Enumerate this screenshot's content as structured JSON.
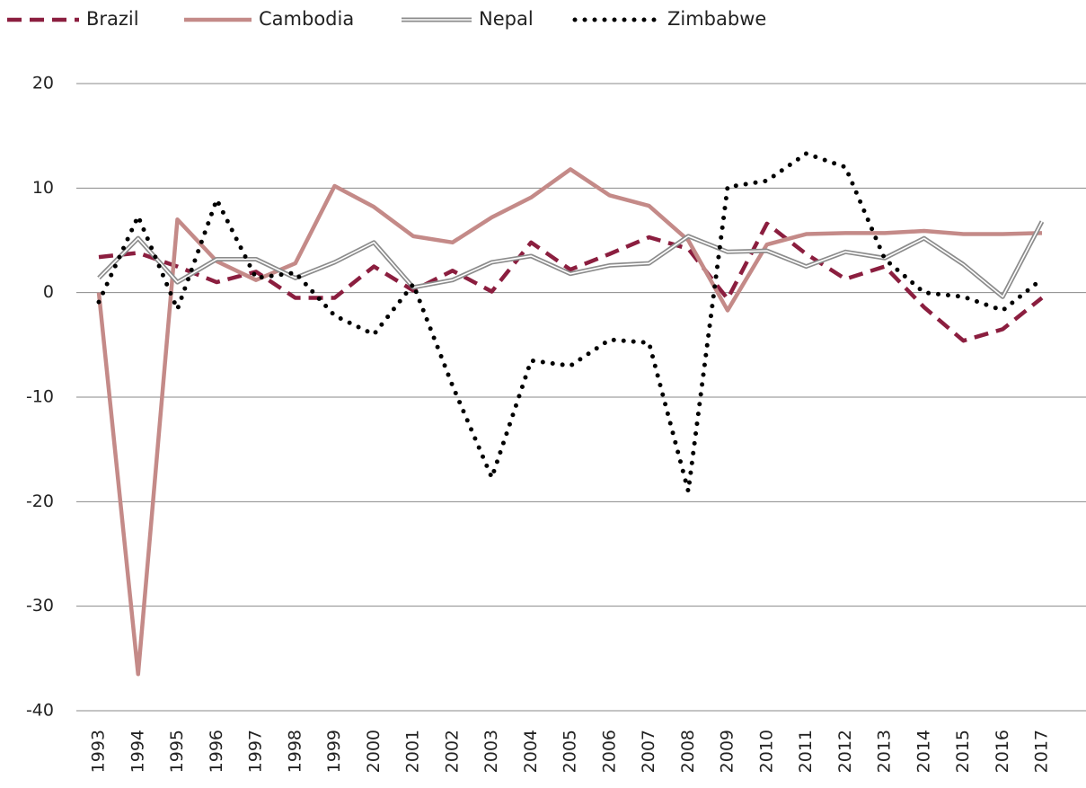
{
  "chart_data": {
    "type": "line",
    "categories": [
      "1993",
      "1994",
      "1995",
      "1996",
      "1997",
      "1998",
      "1999",
      "2000",
      "2001",
      "2002",
      "2003",
      "2004",
      "2005",
      "2006",
      "2007",
      "2008",
      "2009",
      "2010",
      "2011",
      "2012",
      "2013",
      "2014",
      "2015",
      "2016",
      "2017"
    ],
    "series": [
      {
        "name": "Brazil",
        "color": "#8b1e3f",
        "style": "dashed",
        "values": [
          3.4,
          3.8,
          2.5,
          1.0,
          2.0,
          -0.5,
          -0.5,
          2.5,
          0.2,
          2.1,
          0.1,
          4.8,
          2.2,
          3.7,
          5.3,
          4.2,
          -0.6,
          6.6,
          3.7,
          1.3,
          2.5,
          -1.4,
          -4.6,
          -3.5,
          -0.5
        ]
      },
      {
        "name": "Cambodia",
        "color": "#c48a88",
        "style": "solid",
        "values": [
          0.0,
          -36.5,
          7.0,
          3.0,
          1.2,
          2.8,
          10.2,
          8.2,
          5.4,
          4.8,
          7.2,
          9.1,
          11.8,
          9.3,
          8.3,
          5.0,
          -1.7,
          4.6,
          5.6,
          5.7,
          5.7,
          5.9,
          5.6,
          5.6,
          5.7
        ]
      },
      {
        "name": "Nepal",
        "color": "#8c8c8c",
        "style": "double",
        "values": [
          1.4,
          5.2,
          1.0,
          3.2,
          3.2,
          1.4,
          2.9,
          4.8,
          0.5,
          1.2,
          2.9,
          3.5,
          1.8,
          2.6,
          2.8,
          5.4,
          3.9,
          4.0,
          2.5,
          3.9,
          3.3,
          5.2,
          2.7,
          -0.4,
          6.8
        ]
      },
      {
        "name": "Zimbabwe",
        "color": "#000000",
        "style": "dotted",
        "values": [
          -0.9,
          7.3,
          -1.6,
          8.9,
          1.4,
          1.9,
          -2.2,
          -4.0,
          0.8,
          -8.9,
          -17.7,
          -6.5,
          -7.0,
          -4.5,
          -4.8,
          -19.0,
          10.1,
          10.7,
          13.3,
          12.0,
          3.2,
          0.0,
          -0.4,
          -1.7,
          1.3
        ]
      }
    ],
    "ylim": [
      -40,
      20
    ],
    "yticks": [
      -40,
      -30,
      -20,
      -10,
      0,
      10,
      20
    ],
    "grid": true,
    "legend": "top-left"
  }
}
